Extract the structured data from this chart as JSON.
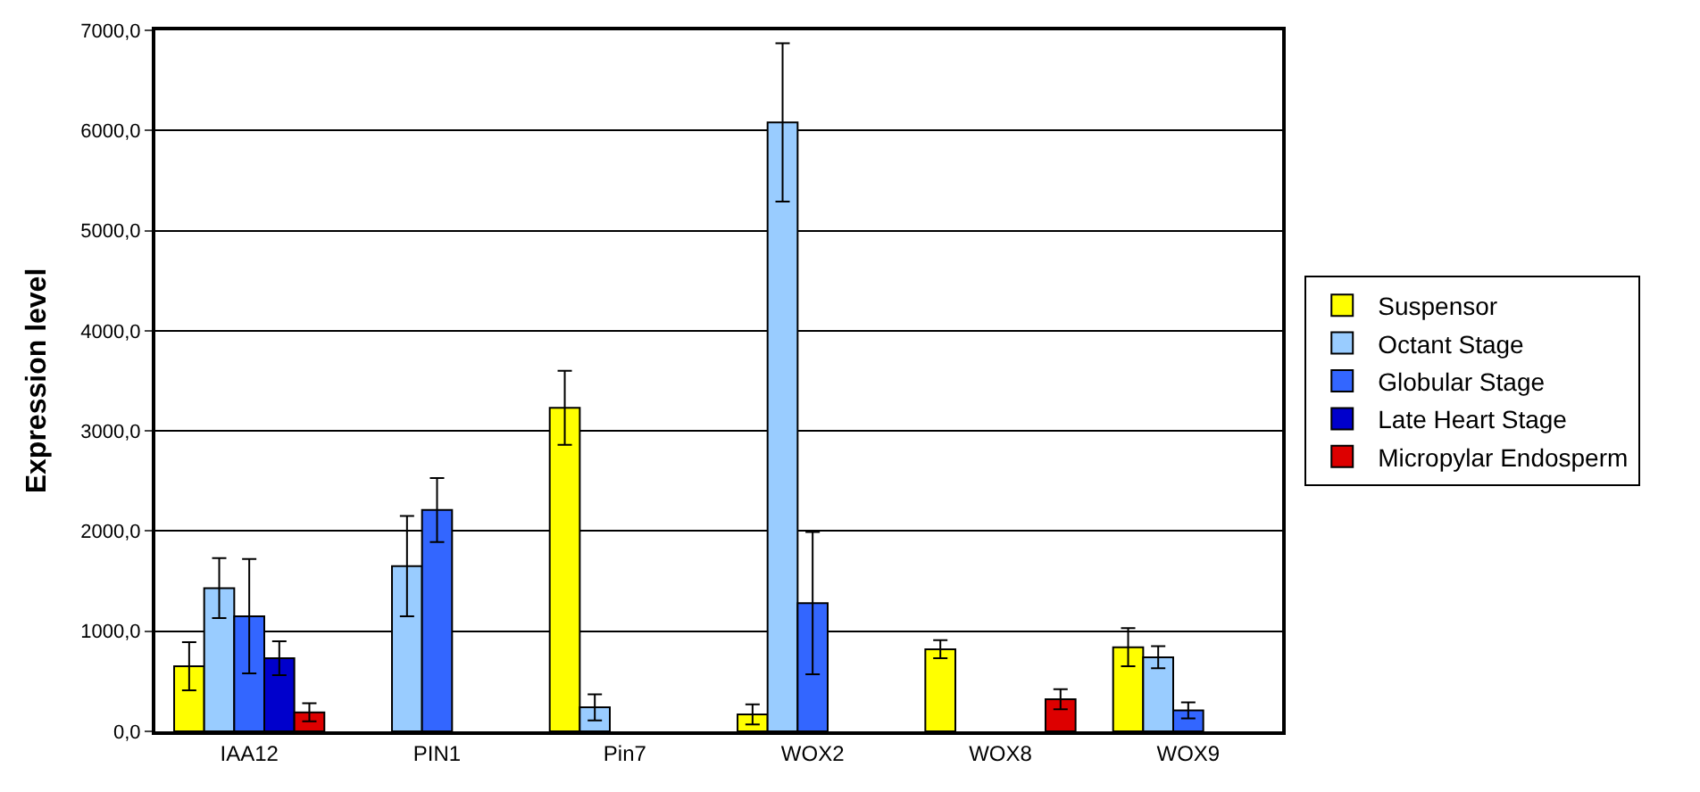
{
  "chart_data": {
    "type": "bar",
    "ylabel": "Expression level",
    "categories": [
      "IAA12",
      "PIN1",
      "Pin7",
      "WOX2",
      "WOX8",
      "WOX9"
    ],
    "series": [
      {
        "name": "Suspensor",
        "color": "#ffff00",
        "values": [
          650,
          null,
          3230,
          170,
          820,
          840
        ],
        "errors": [
          240,
          null,
          370,
          100,
          90,
          190
        ]
      },
      {
        "name": "Octant Stage",
        "color": "#99ccff",
        "values": [
          1430,
          1650,
          240,
          6080,
          null,
          740
        ],
        "errors": [
          300,
          500,
          130,
          790,
          null,
          110
        ]
      },
      {
        "name": "Globular Stage",
        "color": "#3366ff",
        "values": [
          1150,
          2210,
          null,
          1280,
          null,
          210
        ],
        "errors": [
          570,
          320,
          null,
          710,
          null,
          80
        ]
      },
      {
        "name": "Late Heart Stage",
        "color": "#0000cc",
        "values": [
          730,
          null,
          null,
          null,
          null,
          null
        ],
        "errors": [
          170,
          null,
          null,
          null,
          null,
          null
        ]
      },
      {
        "name": "Micropylar Endosperm",
        "color": "#dd0000",
        "values": [
          190,
          null,
          null,
          null,
          320,
          null
        ],
        "errors": [
          90,
          null,
          null,
          null,
          100,
          null
        ]
      }
    ],
    "ylim": [
      0,
      7000
    ],
    "yticks": [
      {
        "value": 0,
        "label": "0,0"
      },
      {
        "value": 1000,
        "label": "1000,0"
      },
      {
        "value": 2000,
        "label": "2000,0"
      },
      {
        "value": 3000,
        "label": "3000,0"
      },
      {
        "value": 4000,
        "label": "4000,0"
      },
      {
        "value": 5000,
        "label": "5000,0"
      },
      {
        "value": 6000,
        "label": "6000,0"
      },
      {
        "value": 7000,
        "label": "7000,0"
      }
    ],
    "grid": "y",
    "legend": "right"
  }
}
